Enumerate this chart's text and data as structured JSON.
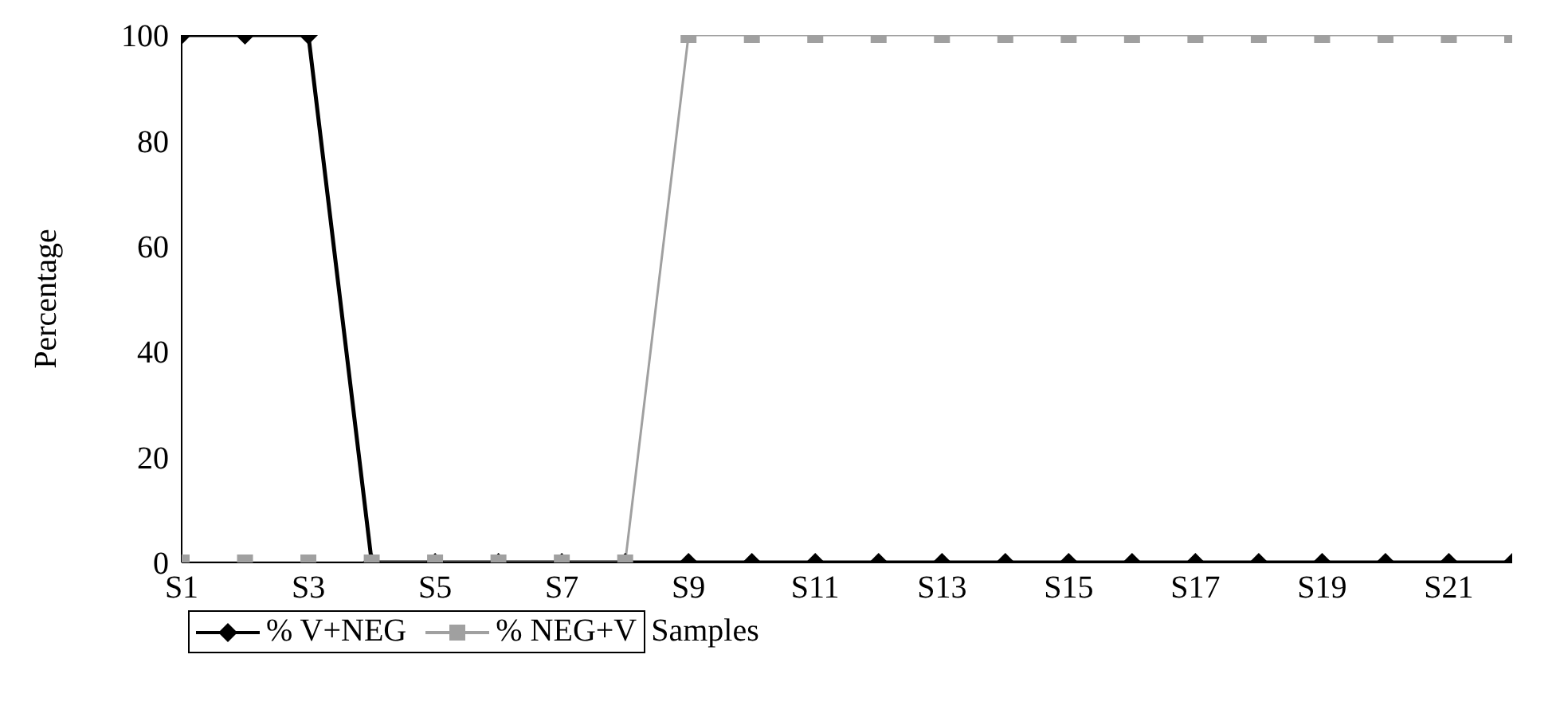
{
  "chart_data": {
    "type": "line",
    "ylabel": "Percentage",
    "xlabel": "Samples",
    "categories": [
      "S1",
      null,
      "S3",
      null,
      "S5",
      null,
      "S7",
      null,
      "S9",
      null,
      "S11",
      null,
      "S13",
      null,
      "S15",
      null,
      "S17",
      null,
      "S19",
      null,
      "S21",
      null
    ],
    "series": [
      {
        "name": "% V+NEG",
        "color": "#000000",
        "marker": "diamond",
        "values": [
          100,
          100,
          100,
          0,
          0,
          0,
          0,
          0,
          0,
          0,
          0,
          0,
          0,
          0,
          0,
          0,
          0,
          0,
          0,
          0,
          0,
          0
        ]
      },
      {
        "name": "% NEG+V",
        "color": "#a0a0a0",
        "marker": "square",
        "values": [
          0,
          0,
          0,
          0,
          0,
          0,
          0,
          0,
          100,
          100,
          100,
          100,
          100,
          100,
          100,
          100,
          100,
          100,
          100,
          100,
          100,
          100
        ]
      }
    ],
    "ylim": [
      0,
      100
    ],
    "yticks": [
      0,
      20,
      40,
      60,
      80,
      100
    ],
    "legend": "bottom left",
    "grid": false
  }
}
